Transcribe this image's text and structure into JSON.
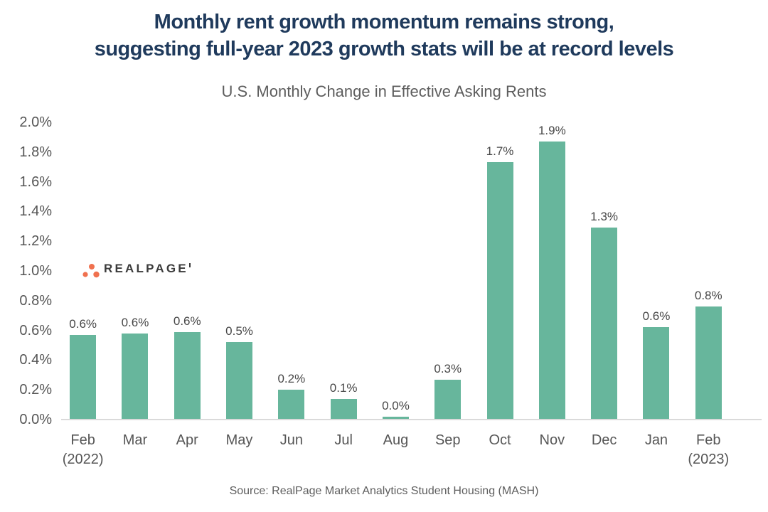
{
  "header": {
    "title_line1": "Monthly rent growth momentum remains strong,",
    "title_line2": "suggesting full-year 2023 growth stats will be at record levels",
    "subtitle": "U.S. Monthly Change in Effective Asking Rents"
  },
  "logo": {
    "text": "REALPAGE",
    "dot_color": "#f0714f",
    "text_color": "#3b3b3b"
  },
  "footer": {
    "source": "Source: RealPage Market Analytics Student Housing (MASH)"
  },
  "chart_data": {
    "type": "bar",
    "title": "U.S. Monthly Change in Effective Asking Rents",
    "categories": [
      "Feb (2022)",
      "Mar",
      "Apr",
      "May",
      "Jun",
      "Jul",
      "Aug",
      "Sep",
      "Oct",
      "Nov",
      "Dec",
      "Jan",
      "Feb (2023)"
    ],
    "x_labels": [
      {
        "line1": "Feb",
        "line2": "(2022)"
      },
      {
        "line1": "Mar",
        "line2": ""
      },
      {
        "line1": "Apr",
        "line2": ""
      },
      {
        "line1": "May",
        "line2": ""
      },
      {
        "line1": "Jun",
        "line2": ""
      },
      {
        "line1": "Jul",
        "line2": ""
      },
      {
        "line1": "Aug",
        "line2": ""
      },
      {
        "line1": "Sep",
        "line2": ""
      },
      {
        "line1": "Oct",
        "line2": ""
      },
      {
        "line1": "Nov",
        "line2": ""
      },
      {
        "line1": "Dec",
        "line2": ""
      },
      {
        "line1": "Jan",
        "line2": ""
      },
      {
        "line1": "Feb",
        "line2": "(2023)"
      }
    ],
    "values": [
      0.57,
      0.58,
      0.59,
      0.52,
      0.2,
      0.14,
      0.02,
      0.27,
      1.73,
      1.87,
      1.29,
      0.62,
      0.76
    ],
    "data_labels": [
      "0.6%",
      "0.6%",
      "0.6%",
      "0.5%",
      "0.2%",
      "0.1%",
      "0.0%",
      "0.3%",
      "1.7%",
      "1.9%",
      "1.3%",
      "0.6%",
      "0.8%"
    ],
    "yticks": [
      "2.0%",
      "1.8%",
      "1.6%",
      "1.4%",
      "1.2%",
      "1.0%",
      "0.8%",
      "0.6%",
      "0.4%",
      "0.2%",
      "0.0%"
    ],
    "ylim": [
      0,
      2.0
    ],
    "grid": false,
    "legend": false,
    "bar_color": "#67b69c",
    "xlabel": "",
    "ylabel": ""
  }
}
